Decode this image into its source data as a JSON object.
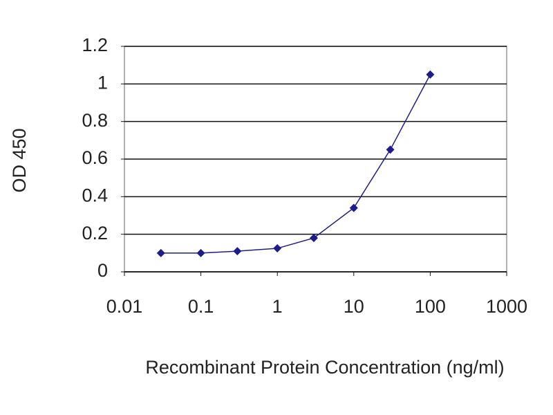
{
  "chart_data": {
    "type": "line",
    "x_label": "Recombinant Protein Concentration (ng/ml)",
    "y_label": "OD 450",
    "x_scale": "log",
    "grid": true,
    "series": [
      {
        "color": "#1c1c8a",
        "x": [
          0.03,
          0.1,
          0.3,
          1,
          3,
          10,
          30,
          100
        ],
        "values": [
          0.1,
          0.1,
          0.11,
          0.125,
          0.18,
          0.34,
          0.65,
          1.05
        ]
      }
    ],
    "xlim": [
      0.01,
      1000
    ],
    "xticks": [
      0.01,
      0.1,
      1,
      10,
      100,
      1000
    ],
    "ylim": [
      0,
      1.2
    ],
    "yticks": [
      0,
      0.2,
      0.4,
      0.6,
      0.8,
      1,
      1.2
    ]
  }
}
